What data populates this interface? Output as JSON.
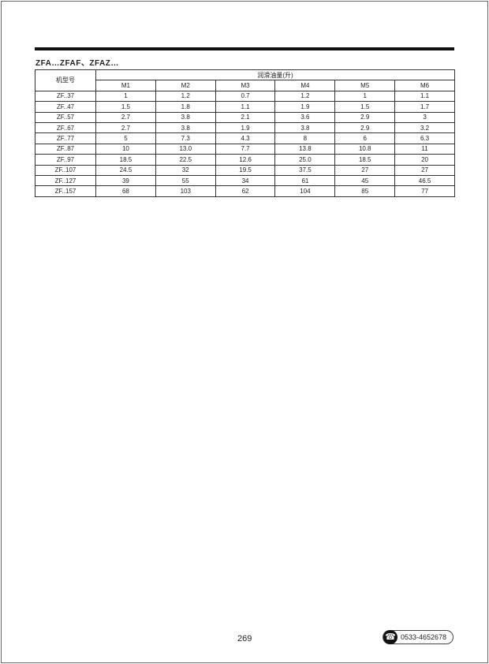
{
  "title": "ZFA…ZFAF、ZFAZ…",
  "table": {
    "model_header": "机型号",
    "group_header": "润滑油量(升)",
    "columns": [
      "M1",
      "M2",
      "M3",
      "M4",
      "M5",
      "M6"
    ],
    "rows": [
      {
        "model": "ZF..37",
        "values": [
          "1",
          "1.2",
          "0.7",
          "1.2",
          "1",
          "1.1"
        ]
      },
      {
        "model": "ZF..47",
        "values": [
          "1.5",
          "1.8",
          "1.1",
          "1.9",
          "1.5",
          "1.7"
        ]
      },
      {
        "model": "ZF..57",
        "values": [
          "2.7",
          "3.8",
          "2.1",
          "3.6",
          "2.9",
          "3"
        ]
      },
      {
        "model": "ZF..67",
        "values": [
          "2.7",
          "3.8",
          "1.9",
          "3.8",
          "2.9",
          "3.2"
        ]
      },
      {
        "model": "ZF..77",
        "values": [
          "5",
          "7.3",
          "4.3",
          "8",
          "6",
          "6.3"
        ]
      },
      {
        "model": "ZF..87",
        "values": [
          "10",
          "13.0",
          "7.7",
          "13.8",
          "10.8",
          "11"
        ]
      },
      {
        "model": "ZF..97",
        "values": [
          "18.5",
          "22.5",
          "12.6",
          "25.0",
          "18.5",
          "20"
        ]
      },
      {
        "model": "ZF..107",
        "values": [
          "24.5",
          "32",
          "19.5",
          "37.5",
          "27",
          "27"
        ]
      },
      {
        "model": "ZF..127",
        "values": [
          "39",
          "55",
          "34",
          "61",
          "45",
          "46.5"
        ]
      },
      {
        "model": "ZF..157",
        "values": [
          "68",
          "103",
          "62",
          "104",
          "85",
          "77"
        ]
      }
    ]
  },
  "footer": {
    "page_number": "269",
    "phone": "0533-4652678",
    "phone_icon": "telephone-icon"
  }
}
